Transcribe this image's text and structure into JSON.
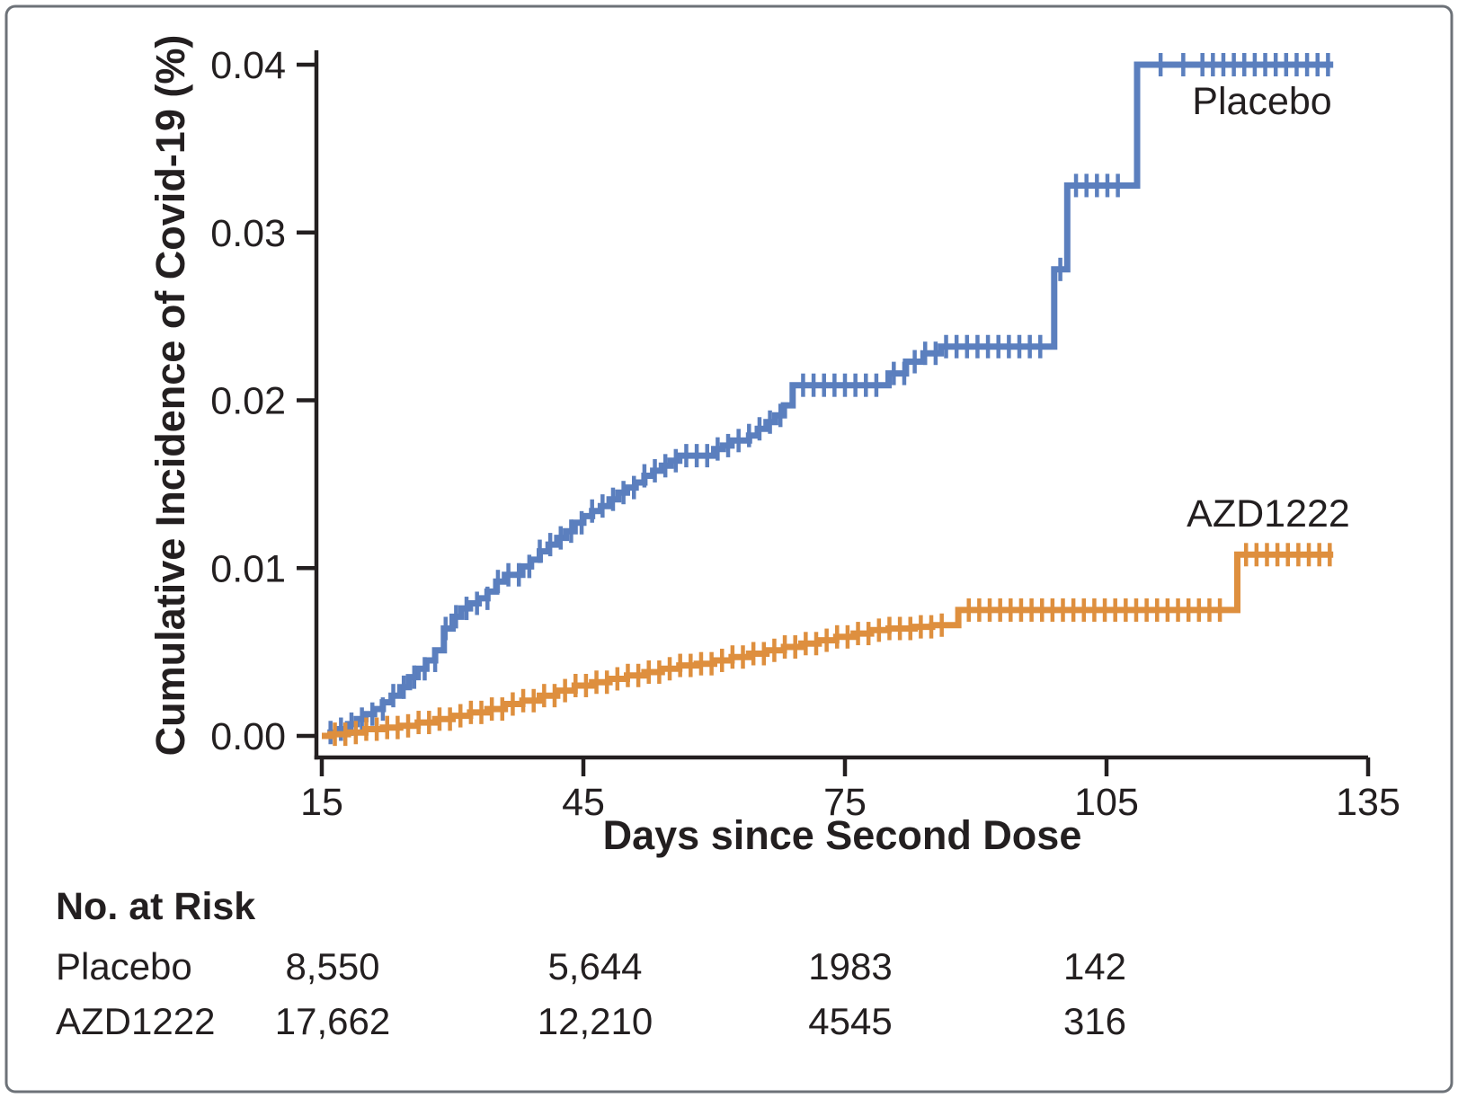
{
  "figure": {
    "border_color": "#6d7278",
    "background": "#ffffff",
    "text_color": "#231f20"
  },
  "chart_data": {
    "type": "line",
    "subtype": "kaplan-meier-step",
    "title": "",
    "xlabel": "Days since Second Dose",
    "ylabel": "Cumulative Incidence of Covid-19 (%)",
    "xlim": [
      15,
      135
    ],
    "ylim": [
      0.0,
      0.04
    ],
    "x_ticks": [
      15,
      45,
      75,
      105,
      135
    ],
    "y_tick_labels": [
      "0.00",
      "0.01",
      "0.02",
      "0.03",
      "0.04"
    ],
    "grid": false,
    "legend_position": "labels-on-plot",
    "censor_tick_spacing_days": 1.2,
    "series": [
      {
        "name": "Placebo",
        "color": "#5b7fbe",
        "end_day": 131,
        "points": [
          [
            15,
            0.0
          ],
          [
            16,
            0.0002
          ],
          [
            17,
            0.0004
          ],
          [
            18,
            0.0007
          ],
          [
            19,
            0.001
          ],
          [
            20,
            0.0013
          ],
          [
            21,
            0.0016
          ],
          [
            22,
            0.002
          ],
          [
            23,
            0.0024
          ],
          [
            24,
            0.0029
          ],
          [
            25,
            0.0035
          ],
          [
            26,
            0.004
          ],
          [
            27,
            0.0045
          ],
          [
            28,
            0.0051
          ],
          [
            29,
            0.0064
          ],
          [
            30,
            0.0071
          ],
          [
            31,
            0.0076
          ],
          [
            32,
            0.0079
          ],
          [
            33,
            0.0082
          ],
          [
            34,
            0.0086
          ],
          [
            35,
            0.0092
          ],
          [
            36,
            0.0096
          ],
          [
            38,
            0.0101
          ],
          [
            39,
            0.0105
          ],
          [
            40,
            0.011
          ],
          [
            41,
            0.0114
          ],
          [
            42,
            0.0118
          ],
          [
            43,
            0.0122
          ],
          [
            44,
            0.0127
          ],
          [
            45,
            0.0131
          ],
          [
            46,
            0.0134
          ],
          [
            47,
            0.0137
          ],
          [
            48,
            0.0141
          ],
          [
            49,
            0.0145
          ],
          [
            50,
            0.0148
          ],
          [
            51,
            0.0151
          ],
          [
            52,
            0.0155
          ],
          [
            53,
            0.0158
          ],
          [
            54,
            0.0161
          ],
          [
            55,
            0.0164
          ],
          [
            56,
            0.0167
          ],
          [
            60,
            0.0171
          ],
          [
            61,
            0.0173
          ],
          [
            62,
            0.0176
          ],
          [
            64,
            0.0179
          ],
          [
            65,
            0.0183
          ],
          [
            66,
            0.0187
          ],
          [
            67,
            0.0191
          ],
          [
            68,
            0.0197
          ],
          [
            69,
            0.0209
          ],
          [
            80,
            0.0216
          ],
          [
            82,
            0.0223
          ],
          [
            84,
            0.0228
          ],
          [
            86,
            0.0232
          ],
          [
            99,
            0.0278
          ],
          [
            100.5,
            0.0328
          ],
          [
            108.5,
            0.04
          ],
          [
            131,
            0.04
          ]
        ],
        "censor_ranges": [
          [
            16,
            68.5
          ],
          [
            70.2,
            79.2
          ],
          [
            80.6,
            98.4
          ],
          [
            99.7,
            99.8
          ],
          [
            101.5,
            107.2
          ],
          [
            111.2,
            111.4
          ],
          [
            113.8,
            114.0
          ],
          [
            116,
            130.8
          ]
        ]
      },
      {
        "name": "AZD1222",
        "color": "#de8f3e",
        "end_day": 131,
        "points": [
          [
            15,
            0.0
          ],
          [
            16,
            0.0001
          ],
          [
            18,
            0.0002
          ],
          [
            20,
            0.0004
          ],
          [
            22,
            0.0005
          ],
          [
            24,
            0.0006
          ],
          [
            26,
            0.0008
          ],
          [
            28,
            0.001
          ],
          [
            30,
            0.0012
          ],
          [
            32,
            0.0014
          ],
          [
            34,
            0.0016
          ],
          [
            36,
            0.0019
          ],
          [
            38,
            0.0021
          ],
          [
            40,
            0.0024
          ],
          [
            42,
            0.0027
          ],
          [
            44,
            0.003
          ],
          [
            46,
            0.0032
          ],
          [
            48,
            0.0034
          ],
          [
            50,
            0.0036
          ],
          [
            52,
            0.0038
          ],
          [
            54,
            0.004
          ],
          [
            56,
            0.0042
          ],
          [
            58,
            0.0043
          ],
          [
            60,
            0.0045
          ],
          [
            62,
            0.0047
          ],
          [
            64,
            0.0049
          ],
          [
            66,
            0.0051
          ],
          [
            68,
            0.0053
          ],
          [
            70,
            0.0055
          ],
          [
            72,
            0.0057
          ],
          [
            74,
            0.0059
          ],
          [
            76,
            0.0061
          ],
          [
            78,
            0.0063
          ],
          [
            80,
            0.0064
          ],
          [
            83,
            0.0065
          ],
          [
            85,
            0.0066
          ],
          [
            88,
            0.0075
          ],
          [
            120,
            0.0108
          ],
          [
            131,
            0.0108
          ]
        ],
        "censor_ranges": [
          [
            16.5,
            87.2
          ],
          [
            89.2,
            118.8
          ],
          [
            121,
            130.6
          ]
        ]
      }
    ]
  },
  "risk_table": {
    "title": "No. at Risk",
    "columns_days": [
      15,
      45,
      75,
      105
    ],
    "rows": [
      {
        "label": "Placebo",
        "values": [
          "8,550",
          "5,644",
          "1983",
          "142"
        ]
      },
      {
        "label": "AZD1222",
        "values": [
          "17,662",
          "12,210",
          "4545",
          "316"
        ]
      }
    ]
  }
}
